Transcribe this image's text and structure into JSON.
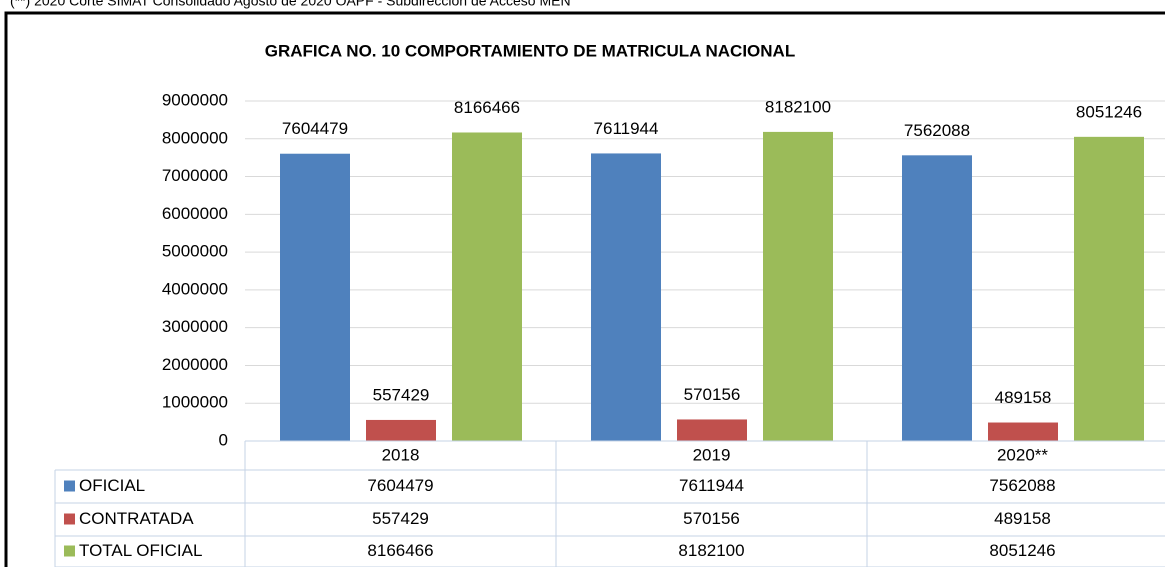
{
  "note": "(**) 2020 Corte SIMAT Consolidado Agosto de 2020 OAPF - Subdirección de Acceso MEN",
  "chart_data": {
    "type": "bar",
    "title": "GRAFICA NO. 10 COMPORTAMIENTO DE MATRICULA  NACIONAL",
    "categories": [
      "2018",
      "2019",
      "2020**"
    ],
    "series": [
      {
        "name": "OFICIAL",
        "color": "#4f81bd",
        "values": [
          7604479,
          7611944,
          7562088
        ]
      },
      {
        "name": "CONTRATADA",
        "color": "#c0504d",
        "values": [
          557429,
          570156,
          489158
        ]
      },
      {
        "name": "TOTAL OFICIAL",
        "color": "#9bbb59",
        "values": [
          8166466,
          8182100,
          8051246
        ]
      }
    ],
    "ylim": [
      0,
      9000000
    ],
    "yticks": [
      0,
      1000000,
      2000000,
      3000000,
      4000000,
      5000000,
      6000000,
      7000000,
      8000000,
      9000000
    ],
    "grid": true,
    "data_table": true
  }
}
